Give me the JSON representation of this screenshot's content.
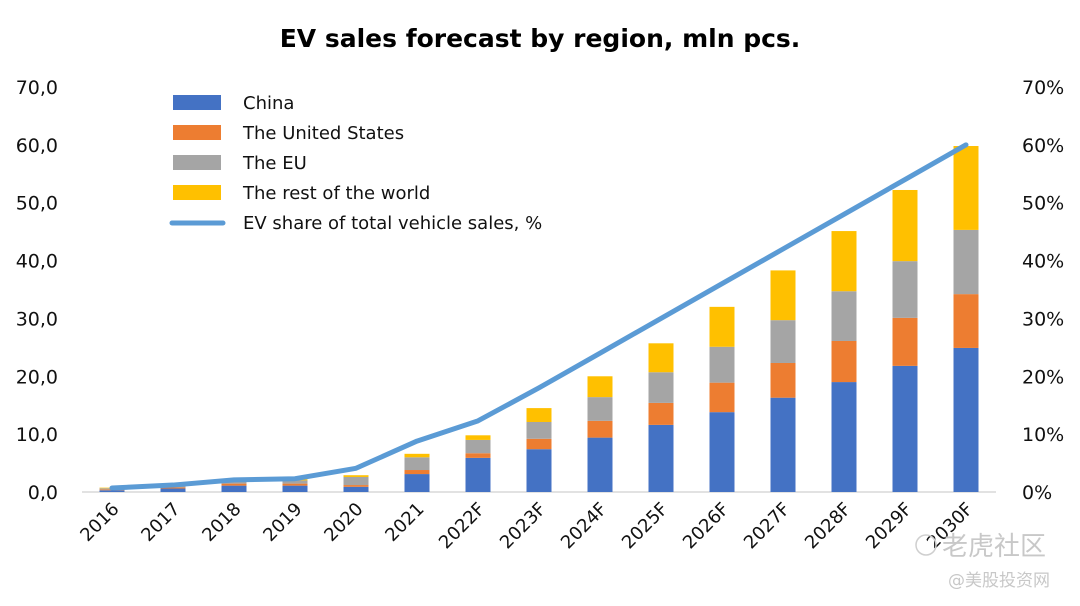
{
  "chart_data": {
    "type": "bar",
    "stacked": true,
    "title": "EV sales forecast by region, mln pcs.",
    "xlabel": "",
    "ylabel": "",
    "categories": [
      "2016",
      "2017",
      "2018",
      "2019",
      "2020",
      "2021",
      "2022F",
      "2023F",
      "2024F",
      "2025F",
      "2026F",
      "2027F",
      "2028F",
      "2029F",
      "2030F"
    ],
    "series": [
      {
        "name": "China",
        "color": "#4472C4",
        "values": [
          0.3,
          0.6,
          1.1,
          1.1,
          0.9,
          3.1,
          5.9,
          7.4,
          9.4,
          11.6,
          13.8,
          16.3,
          19.0,
          21.8,
          24.9
        ]
      },
      {
        "name": "The United States",
        "color": "#ED7D31",
        "values": [
          0.15,
          0.2,
          0.35,
          0.35,
          0.3,
          0.7,
          0.8,
          1.8,
          2.9,
          3.8,
          5.1,
          6.0,
          7.1,
          8.3,
          9.3
        ]
      },
      {
        "name": "The EU",
        "color": "#A5A5A5",
        "values": [
          0.2,
          0.3,
          0.4,
          0.55,
          1.4,
          2.2,
          2.3,
          2.9,
          4.1,
          5.3,
          6.2,
          7.4,
          8.6,
          9.8,
          11.1
        ]
      },
      {
        "name": "The rest of the world",
        "color": "#FFC000",
        "values": [
          0.1,
          0.1,
          0.15,
          0.2,
          0.3,
          0.6,
          0.8,
          2.4,
          3.6,
          5.0,
          6.9,
          8.6,
          10.4,
          12.3,
          14.5
        ]
      }
    ],
    "line_series": {
      "name": "EV share of total vehicle sales, %",
      "color": "#5B9BD5",
      "axis": "right",
      "values": [
        0.7,
        1.2,
        2.1,
        2.3,
        4.1,
        8.8,
        12.3,
        18,
        24,
        30,
        36,
        42,
        48,
        54,
        60
      ]
    },
    "ylim": [
      0,
      70
    ],
    "y_ticks": [
      "0,0",
      "10,0",
      "20,0",
      "30,0",
      "40,0",
      "50,0",
      "60,0",
      "70,0"
    ],
    "y2lim": [
      0,
      70
    ],
    "y2_ticks": [
      "0%",
      "10%",
      "20%",
      "30%",
      "40%",
      "50%",
      "60%",
      "70%"
    ],
    "grid": false,
    "legend_position": "top-left"
  },
  "watermark": {
    "line1": "老虎社区",
    "line2": "@美股投资网"
  }
}
